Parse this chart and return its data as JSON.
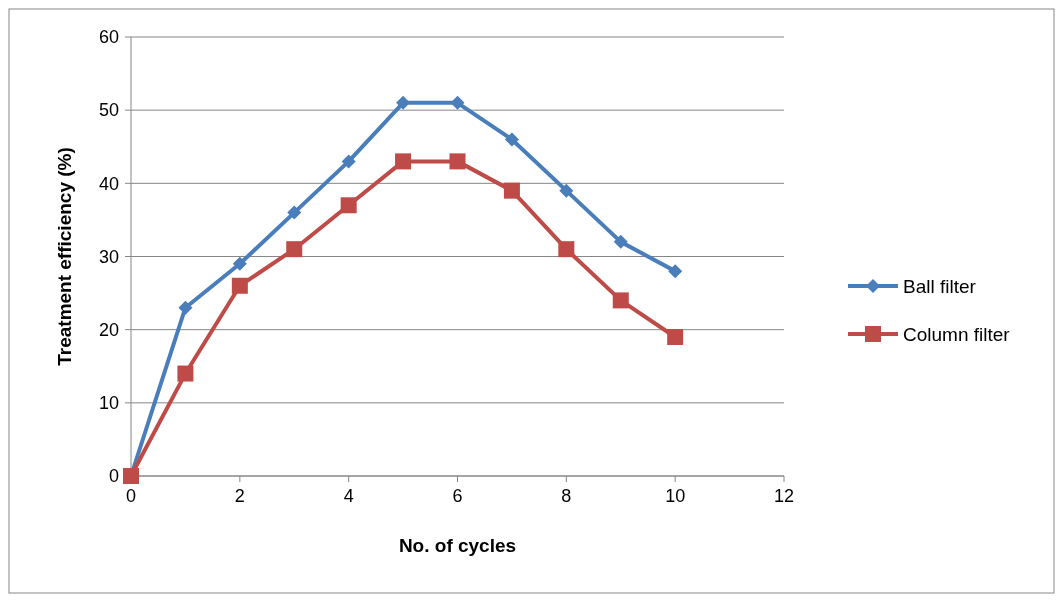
{
  "chart_data": {
    "type": "line",
    "xlabel": "No. of cycles",
    "ylabel": "Treatment efficiency (%)",
    "x": [
      0,
      1,
      2,
      3,
      4,
      5,
      6,
      7,
      8,
      9,
      10
    ],
    "series": [
      {
        "name": "Ball filter",
        "color": "#4a7ebb",
        "marker": "diamond",
        "values": [
          0,
          23,
          29,
          36,
          43,
          51,
          51,
          46,
          39,
          32,
          28
        ]
      },
      {
        "name": "Column filter",
        "color": "#be4b48",
        "marker": "square",
        "values": [
          0,
          14,
          26,
          31,
          37,
          43,
          43,
          39,
          31,
          24,
          19
        ]
      }
    ],
    "xlim": [
      0,
      12
    ],
    "xticks": [
      0,
      2,
      4,
      6,
      8,
      10,
      12
    ],
    "ylim": [
      0,
      60
    ],
    "yticks": [
      0,
      10,
      20,
      30,
      40,
      50,
      60
    ],
    "grid": "y",
    "legend": "right",
    "line_style": "solid"
  }
}
